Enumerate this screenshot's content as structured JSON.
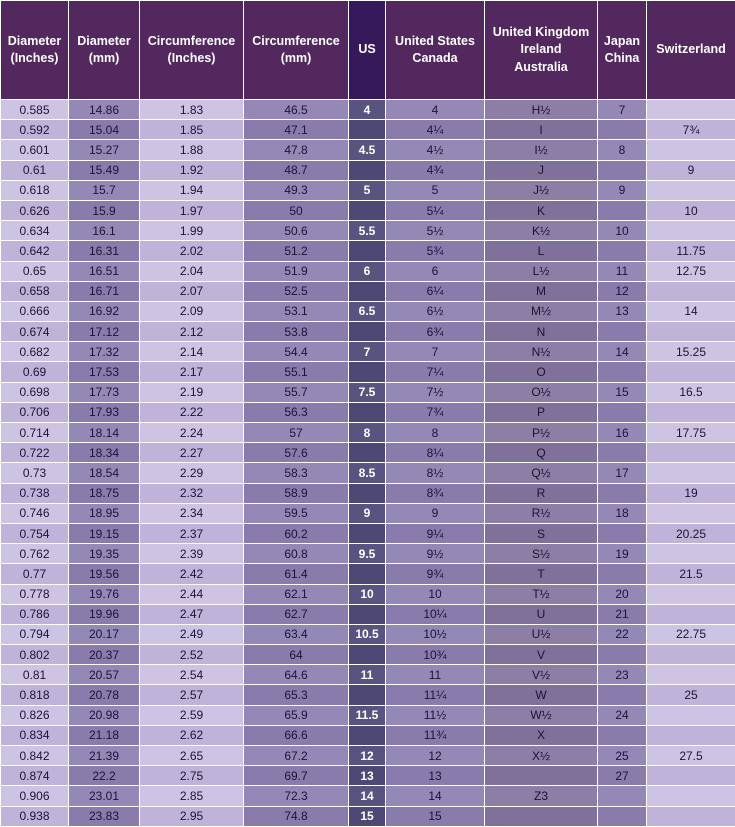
{
  "colors": {
    "header_bg": "#53285f",
    "header_us_bg": "#36195a",
    "header_text": "#ffffff",
    "light_a": "#cdc3e3",
    "light_b": "#bfb3d9",
    "medium_a": "#9488b6",
    "medium_b": "#897cac",
    "uk_a": "#8c7ea4",
    "uk_b": "#80719a",
    "us_a": "#59537f",
    "us_b": "#4e4875",
    "body_text": "#1d1335"
  },
  "chart_data": {
    "type": "table",
    "columns": [
      {
        "id": "diameter-inches",
        "lines": [
          "Diameter",
          "(Inches)"
        ],
        "style": "light"
      },
      {
        "id": "diameter-mm",
        "lines": [
          "Diameter",
          "(mm)"
        ],
        "style": "medium"
      },
      {
        "id": "circumference-inches",
        "lines": [
          "Circumference",
          "(Inches)"
        ],
        "style": "light"
      },
      {
        "id": "circumference-mm",
        "lines": [
          "Circumference",
          "(mm)"
        ],
        "style": "medium"
      },
      {
        "id": "us",
        "lines": [
          "US"
        ],
        "style": "us"
      },
      {
        "id": "united-states-canada",
        "lines": [
          "United States",
          "Canada"
        ],
        "style": "medium"
      },
      {
        "id": "united-kingdom-ireland-australia",
        "lines": [
          "United Kingdom",
          "Ireland",
          "Australia"
        ],
        "style": "uk"
      },
      {
        "id": "japan-china",
        "lines": [
          "Japan",
          "China"
        ],
        "style": "medium"
      },
      {
        "id": "switzerland",
        "lines": [
          "Switzerland"
        ],
        "style": "light"
      }
    ],
    "rows": [
      [
        "0.585",
        "14.86",
        "1.83",
        "46.5",
        "4",
        "4",
        "H½",
        "7",
        ""
      ],
      [
        "0.592",
        "15.04",
        "1.85",
        "47.1",
        "",
        "4¼",
        "I",
        "",
        "7¾"
      ],
      [
        "0.601",
        "15.27",
        "1.88",
        "47.8",
        "4.5",
        "4½",
        "I½",
        "8",
        ""
      ],
      [
        "0.61",
        "15.49",
        "1.92",
        "48.7",
        "",
        "4¾",
        "J",
        "",
        "9"
      ],
      [
        "0.618",
        "15.7",
        "1.94",
        "49.3",
        "5",
        "5",
        "J½",
        "9",
        ""
      ],
      [
        "0.626",
        "15.9",
        "1.97",
        "50",
        "",
        "5¼",
        "K",
        "",
        "10"
      ],
      [
        "0.634",
        "16.1",
        "1.99",
        "50.6",
        "5.5",
        "5½",
        "K½",
        "10",
        ""
      ],
      [
        "0.642",
        "16.31",
        "2.02",
        "51.2",
        "",
        "5¾",
        "L",
        "",
        "11.75"
      ],
      [
        "0.65",
        "16.51",
        "2.04",
        "51.9",
        "6",
        "6",
        "L½",
        "11",
        "12.75"
      ],
      [
        "0.658",
        "16.71",
        "2.07",
        "52.5",
        "",
        "6¼",
        "M",
        "12",
        ""
      ],
      [
        "0.666",
        "16.92",
        "2.09",
        "53.1",
        "6.5",
        "6½",
        "M½",
        "13",
        "14"
      ],
      [
        "0.674",
        "17.12",
        "2.12",
        "53.8",
        "",
        "6¾",
        "N",
        "",
        ""
      ],
      [
        "0.682",
        "17.32",
        "2.14",
        "54.4",
        "7",
        "7",
        "N½",
        "14",
        "15.25"
      ],
      [
        "0.69",
        "17.53",
        "2.17",
        "55.1",
        "",
        "7¼",
        "O",
        "",
        ""
      ],
      [
        "0.698",
        "17.73",
        "2.19",
        "55.7",
        "7.5",
        "7½",
        "O½",
        "15",
        "16.5"
      ],
      [
        "0.706",
        "17.93",
        "2.22",
        "56.3",
        "",
        "7¾",
        "P",
        "",
        ""
      ],
      [
        "0.714",
        "18.14",
        "2.24",
        "57",
        "8",
        "8",
        "P½",
        "16",
        "17.75"
      ],
      [
        "0.722",
        "18.34",
        "2.27",
        "57.6",
        "",
        "8¼",
        "Q",
        "",
        ""
      ],
      [
        "0.73",
        "18.54",
        "2.29",
        "58.3",
        "8.5",
        "8½",
        "Q½",
        "17",
        ""
      ],
      [
        "0.738",
        "18.75",
        "2.32",
        "58.9",
        "",
        "8¾",
        "R",
        "",
        "19"
      ],
      [
        "0.746",
        "18.95",
        "2.34",
        "59.5",
        "9",
        "9",
        "R½",
        "18",
        ""
      ],
      [
        "0.754",
        "19.15",
        "2.37",
        "60.2",
        "",
        "9¼",
        "S",
        "",
        "20.25"
      ],
      [
        "0.762",
        "19.35",
        "2.39",
        "60.8",
        "9.5",
        "9½",
        "S½",
        "19",
        ""
      ],
      [
        "0.77",
        "19.56",
        "2.42",
        "61.4",
        "",
        "9¾",
        "T",
        "",
        "21.5"
      ],
      [
        "0.778",
        "19.76",
        "2.44",
        "62.1",
        "10",
        "10",
        "T½",
        "20",
        ""
      ],
      [
        "0.786",
        "19.96",
        "2.47",
        "62.7",
        "",
        "10¼",
        "U",
        "21",
        ""
      ],
      [
        "0.794",
        "20.17",
        "2.49",
        "63.4",
        "10.5",
        "10½",
        "U½",
        "22",
        "22.75"
      ],
      [
        "0.802",
        "20.37",
        "2.52",
        "64",
        "",
        "10¾",
        "V",
        "",
        ""
      ],
      [
        "0.81",
        "20.57",
        "2.54",
        "64.6",
        "11",
        "11",
        "V½",
        "23",
        ""
      ],
      [
        "0.818",
        "20.78",
        "2.57",
        "65.3",
        "",
        "11¼",
        "W",
        "",
        "25"
      ],
      [
        "0.826",
        "20.98",
        "2.59",
        "65.9",
        "11.5",
        "11½",
        "W½",
        "24",
        ""
      ],
      [
        "0.834",
        "21.18",
        "2.62",
        "66.6",
        "",
        "11¾",
        "X",
        "",
        ""
      ],
      [
        "0.842",
        "21.39",
        "2.65",
        "67.2",
        "12",
        "12",
        "X½",
        "25",
        "27.5"
      ],
      [
        "0.874",
        "22.2",
        "2.75",
        "69.7",
        "13",
        "13",
        "",
        "27",
        ""
      ],
      [
        "0.906",
        "23.01",
        "2.85",
        "72.3",
        "14",
        "14",
        "Z3",
        "",
        ""
      ],
      [
        "0.938",
        "23.83",
        "2.95",
        "74.8",
        "15",
        "15",
        "",
        "",
        ""
      ]
    ]
  }
}
